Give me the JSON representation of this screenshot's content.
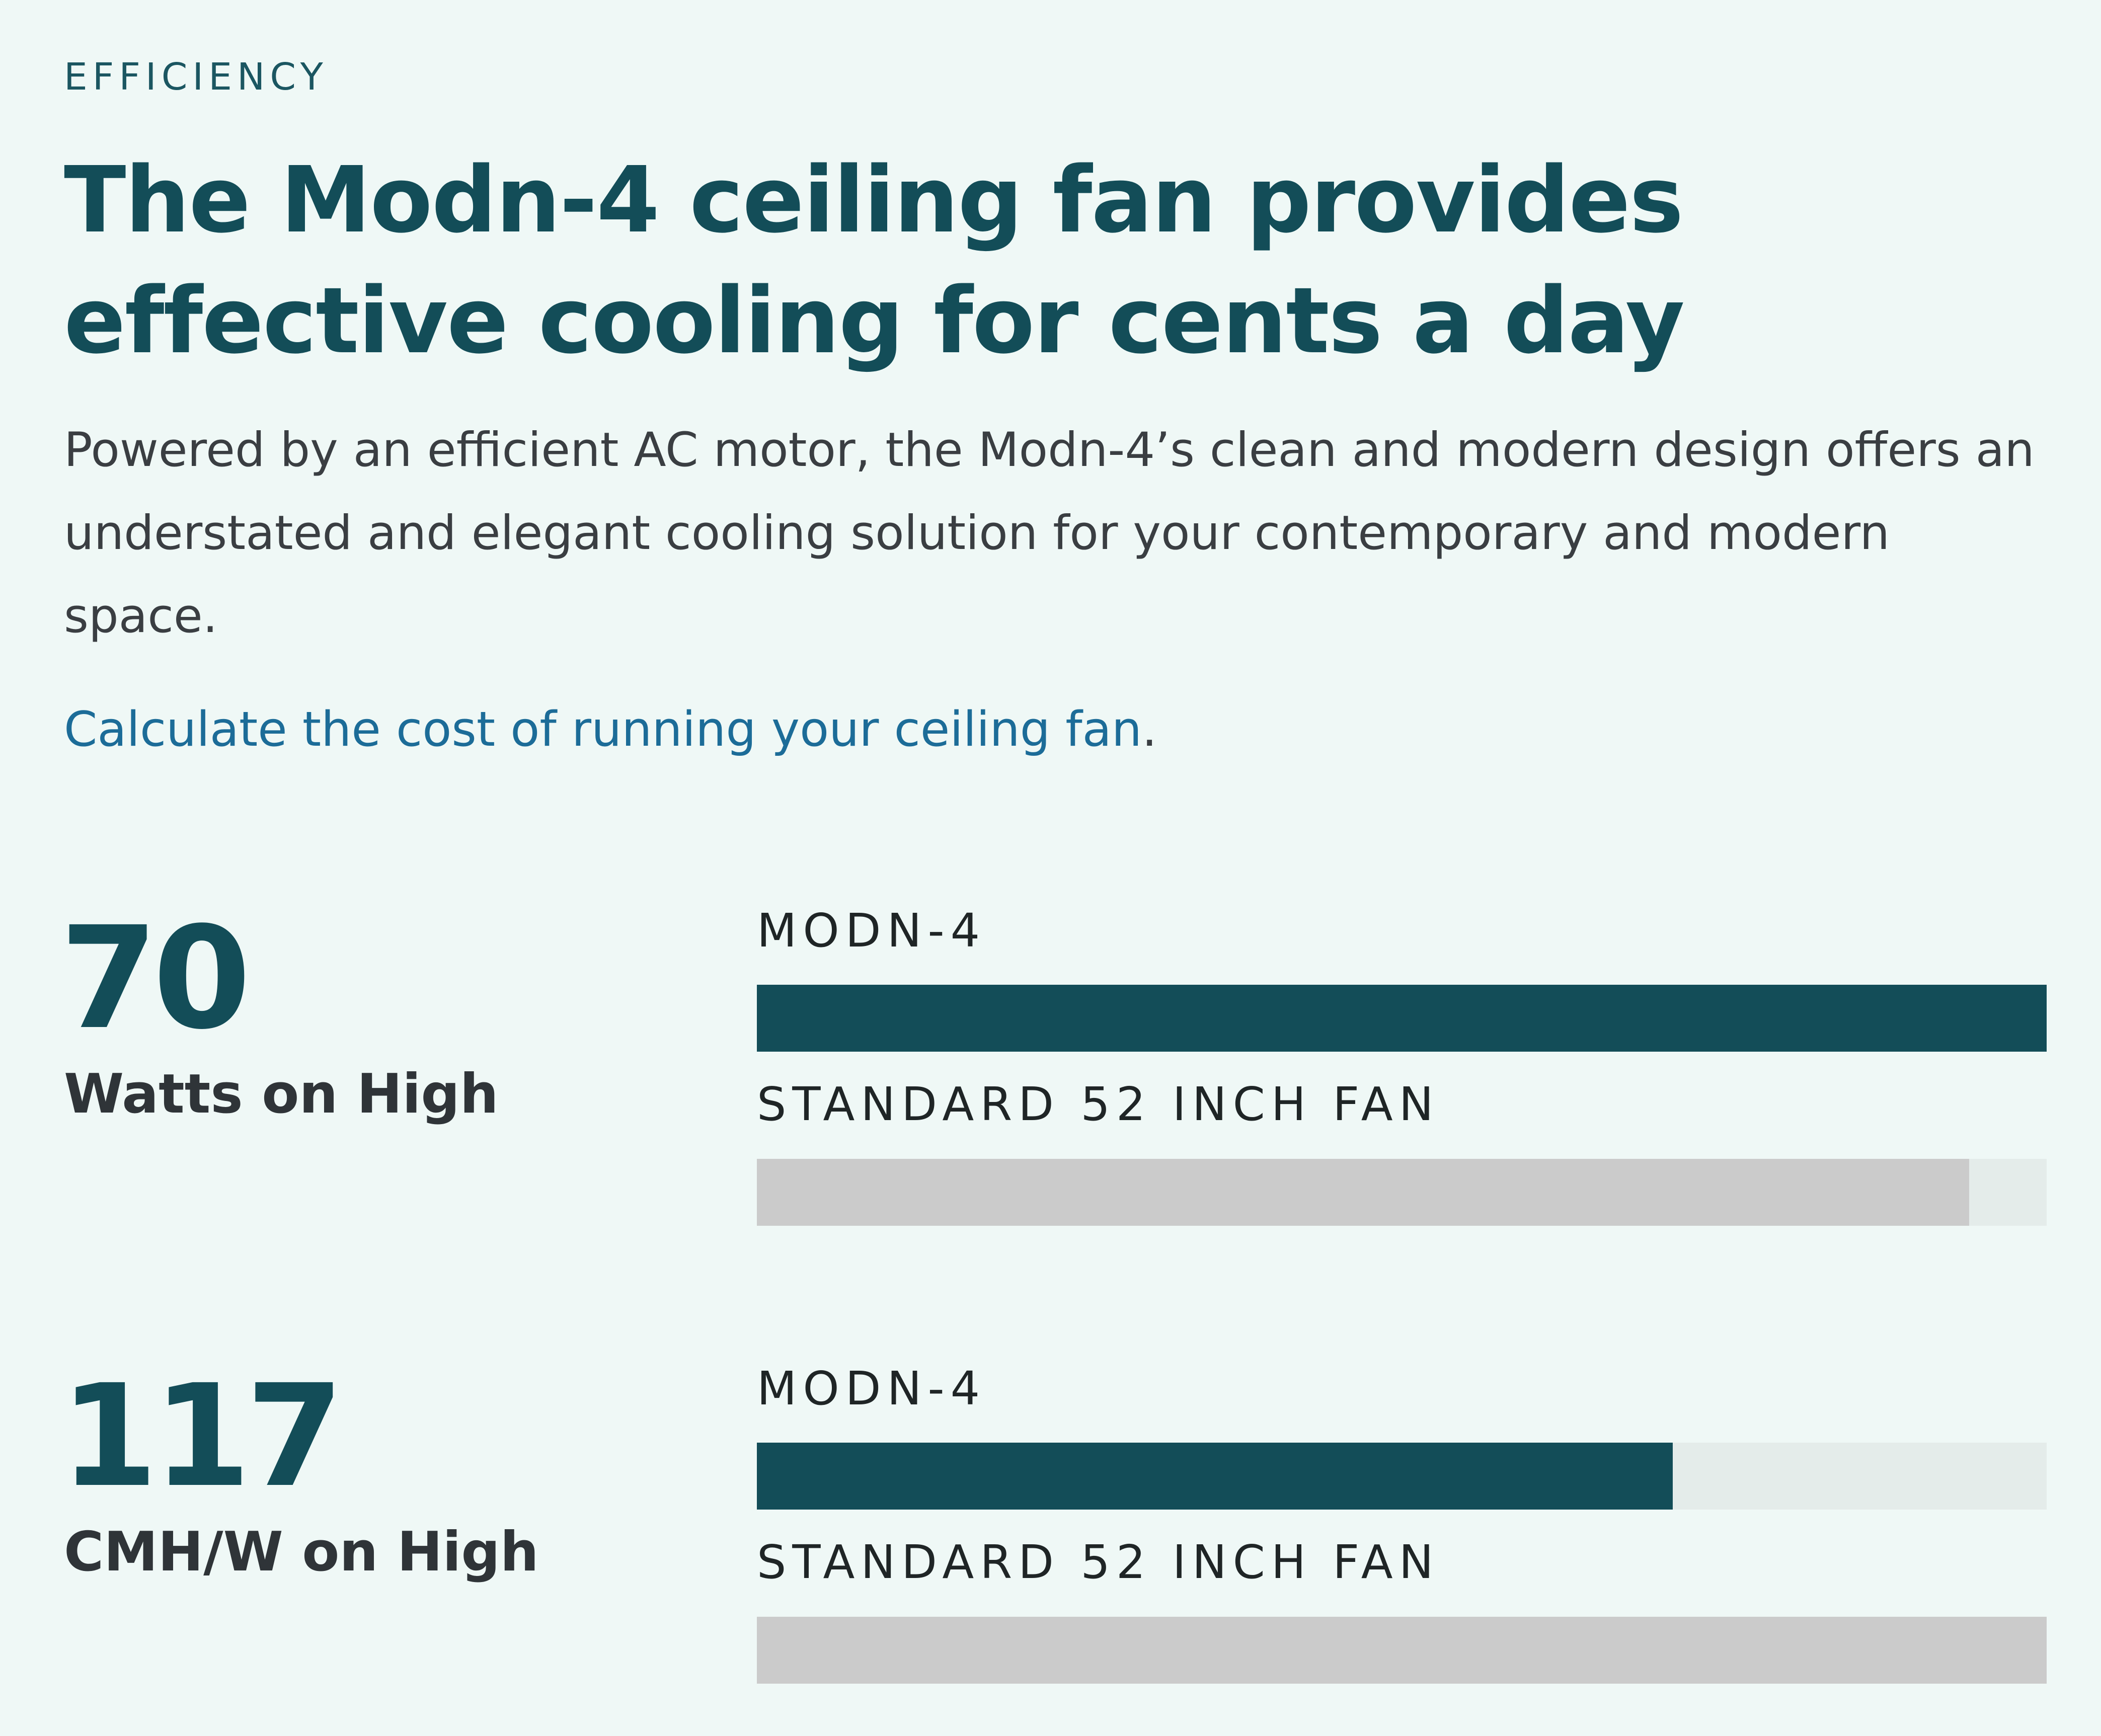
{
  "section": {
    "eyebrow": "EFFICIENCY",
    "headline": "The Modn-4 ceiling fan provides effective cooling for cents a day",
    "description": "Powered by an efficient AC motor, the Modn-4’s clean and modern design offers an understated and elegant cooling solution for your contemporary and modern space.",
    "cost_link_text": "Calculate the cost of running your ceiling fan",
    "cost_link_suffix": "."
  },
  "metrics": [
    {
      "value": "70",
      "unit": "Watts on High",
      "bars": [
        {
          "label": "MODN-4",
          "fill_fraction": 1.0
        },
        {
          "label": "STANDARD 52 INCH FAN",
          "fill_fraction": 0.94
        }
      ]
    },
    {
      "value": "117",
      "unit": "CMH/W on High",
      "bars": [
        {
          "label": "MODN-4",
          "fill_fraction": 0.71
        },
        {
          "label": "STANDARD 52 INCH FAN",
          "fill_fraction": 1.0
        }
      ]
    }
  ],
  "colors": {
    "background": "#eff8f6",
    "primary": "#134d58",
    "link": "#1c6c98",
    "standard_bar": "#cbcbcb",
    "track": "#e4ecea"
  }
}
